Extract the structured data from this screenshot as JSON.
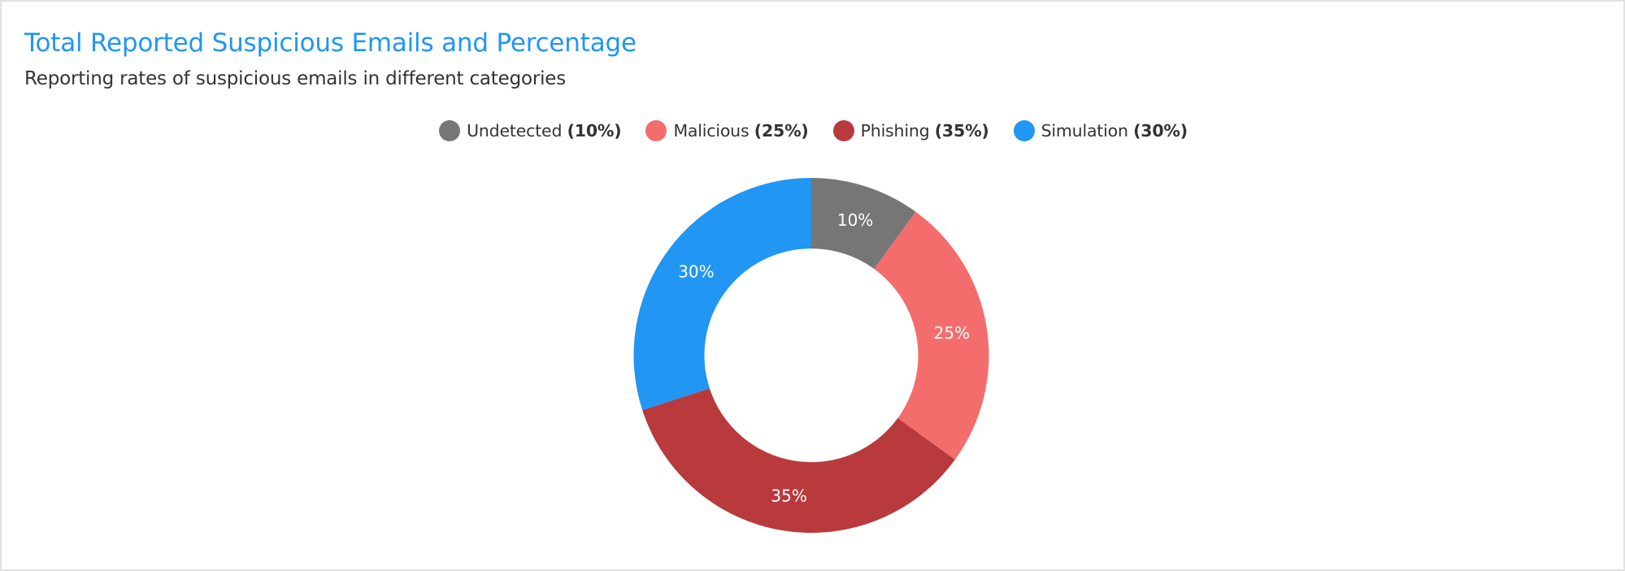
{
  "header": {
    "title": "Total Reported Suspicious Emails and Percentage",
    "subtitle": "Reporting rates of suspicious emails in different categories"
  },
  "legend": {
    "items": [
      {
        "name": "Undetected",
        "pct": "(10%)",
        "color": "#767676"
      },
      {
        "name": "Malicious",
        "pct": "(25%)",
        "color": "#f46d6d"
      },
      {
        "name": "Phishing",
        "pct": "(35%)",
        "color": "#b83a3c"
      },
      {
        "name": "Simulation",
        "pct": "(30%)",
        "color": "#2196f3"
      }
    ]
  },
  "slice_labels": [
    "10%",
    "25%",
    "35%",
    "30%"
  ],
  "chart_data": {
    "type": "pie",
    "variant": "donut",
    "title": "Total Reported Suspicious Emails and Percentage",
    "subtitle": "Reporting rates of suspicious emails in different categories",
    "categories": [
      "Undetected",
      "Malicious",
      "Phishing",
      "Simulation"
    ],
    "values": [
      10,
      25,
      35,
      30
    ],
    "unit": "%",
    "colors": [
      "#767676",
      "#f46d6d",
      "#b83a3c",
      "#2196f3"
    ],
    "data_labels": [
      "10%",
      "25%",
      "35%",
      "30%"
    ],
    "start_angle_deg": 0,
    "direction": "clockwise",
    "inner_radius_ratio": 0.6,
    "legend_position": "top-center"
  }
}
